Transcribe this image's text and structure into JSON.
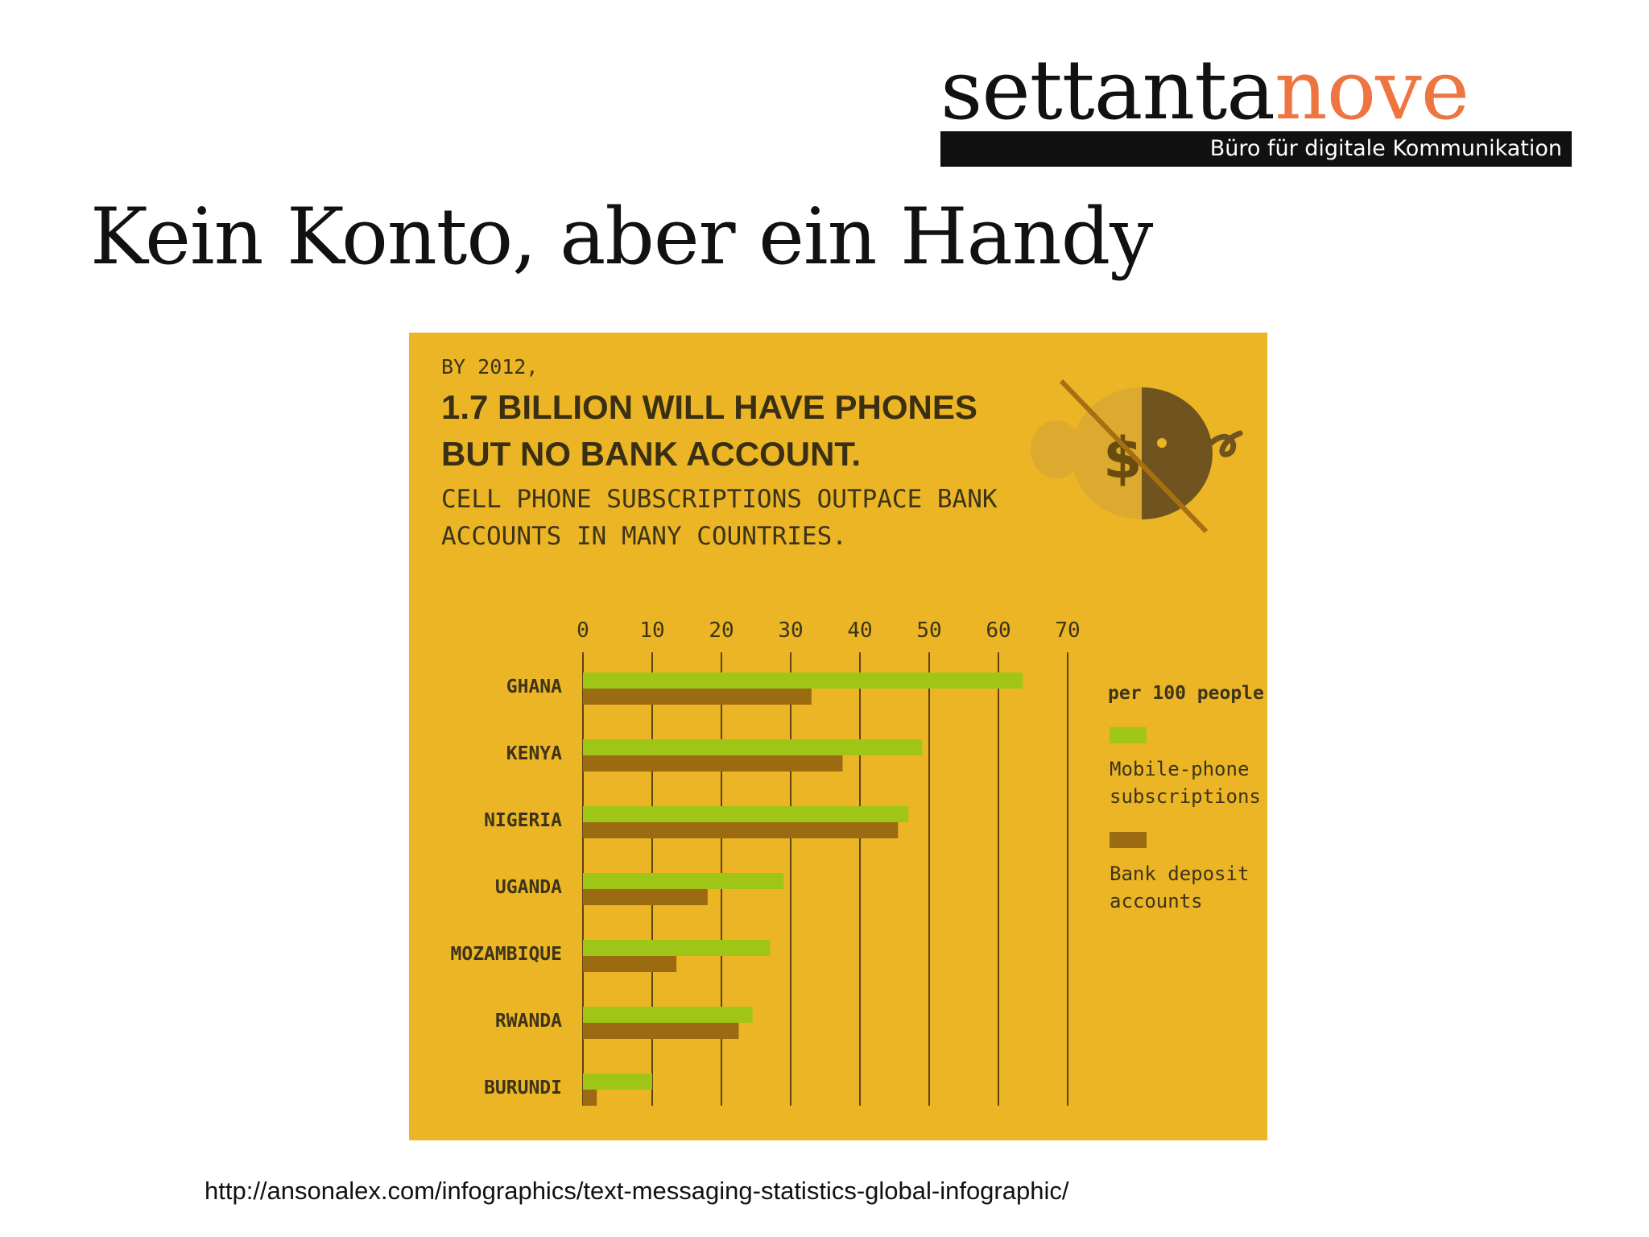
{
  "logo": {
    "word_main": "settanta",
    "word_accent": "nove",
    "tagline": "Büro für digitale Kommunikation",
    "accent_color": "#ee7440"
  },
  "slide_title": "Kein Konto, aber ein Handy",
  "infographic": {
    "by_line": "BY 2012,",
    "headline_line1": "1.7 BILLION WILL HAVE PHONES",
    "headline_line2": "BUT NO BANK ACCOUNT.",
    "sub_line1": "CELL PHONE SUBSCRIPTIONS OUTPACE BANK",
    "sub_line2": "ACCOUNTS IN MANY COUNTRIES.",
    "icon": "crossed-out-piggy-bank-icon",
    "background_color": "#ecb526"
  },
  "chart_data": {
    "type": "bar",
    "orientation": "horizontal",
    "categories": [
      "GHANA",
      "KENYA",
      "NIGERIA",
      "UGANDA",
      "MOZAMBIQUE",
      "RWANDA",
      "BURUNDI"
    ],
    "series": [
      {
        "name": "Mobile-phone subscriptions",
        "color": "#9fc616",
        "values": [
          63.5,
          49,
          47,
          29,
          27,
          24.5,
          10
        ]
      },
      {
        "name": "Bank deposit accounts",
        "color": "#9a6b10",
        "values": [
          33,
          37.5,
          45.5,
          18,
          13.5,
          22.5,
          2
        ]
      }
    ],
    "x_ticks": [
      "0",
      "10",
      "20",
      "30",
      "40",
      "50",
      "60",
      "70"
    ],
    "xlim": [
      0,
      70
    ],
    "unit_label": "per 100 people",
    "legend_position": "right",
    "grid": true
  },
  "source_url": "http://ansonalex.com/infographics/text-messaging-statistics-global-infographic/"
}
